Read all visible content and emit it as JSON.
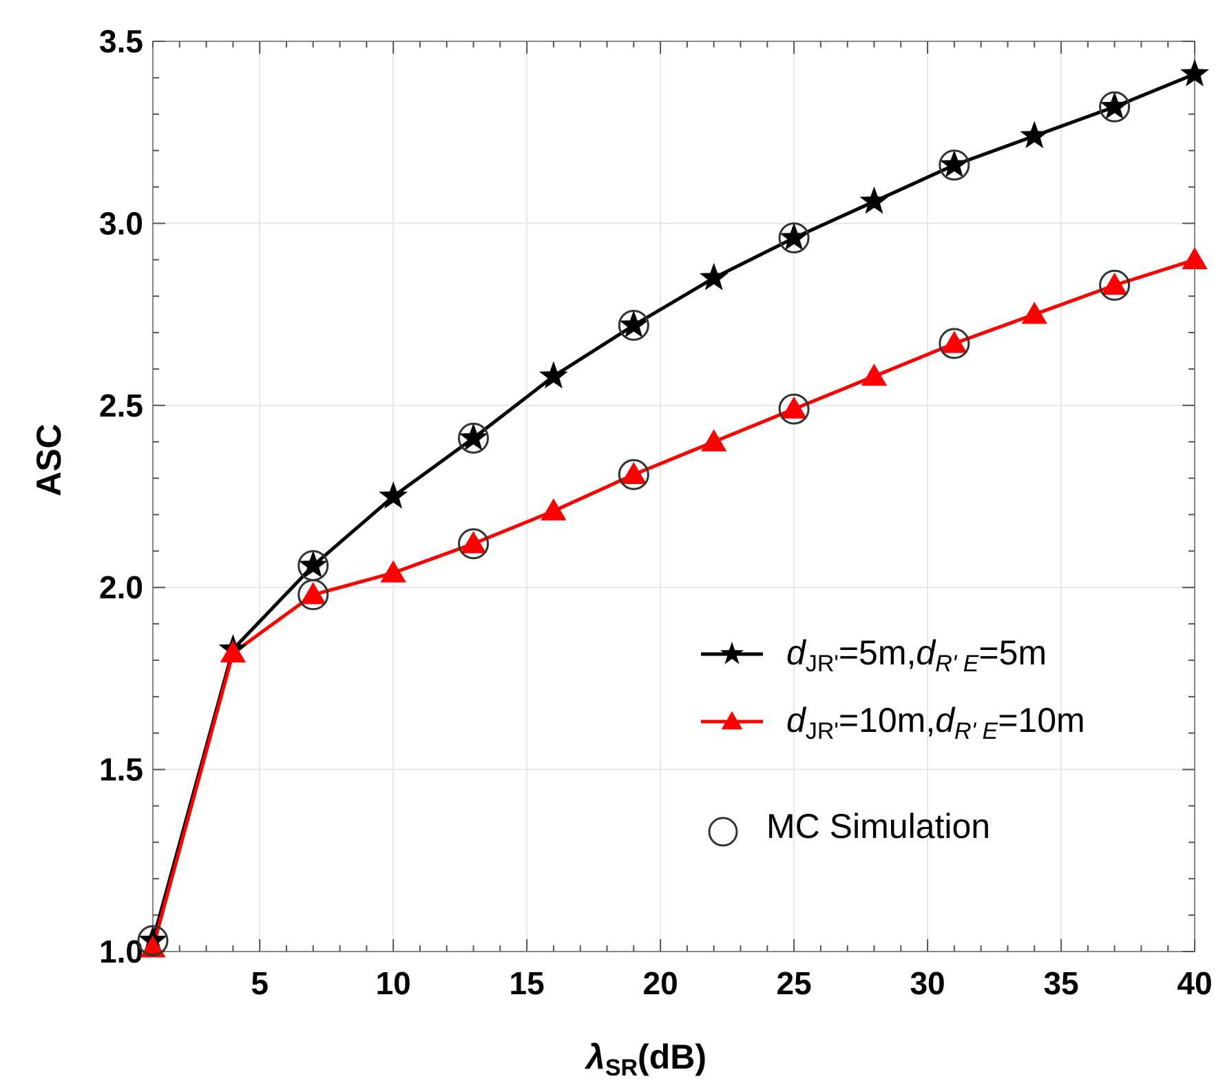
{
  "chart_data": {
    "type": "line",
    "title": "",
    "xlabel_main": "λ",
    "xlabel_sub": "SR",
    "xlabel_unit": "(dB)",
    "ylabel": "ASC",
    "xlim": [
      1,
      40
    ],
    "ylim": [
      1.0,
      3.5
    ],
    "grid": true,
    "xticks": [
      5,
      10,
      15,
      20,
      25,
      30,
      35,
      40
    ],
    "xtick_labels": [
      "5",
      "10",
      "15",
      "20",
      "25",
      "30",
      "35",
      "40"
    ],
    "yticks": [
      1.0,
      1.5,
      2.0,
      2.5,
      3.0,
      3.5
    ],
    "ytick_labels": [
      "1.0",
      "1.5",
      "2.0",
      "2.5",
      "3.0",
      "3.5"
    ],
    "series": [
      {
        "name": "dJR'=5m,dR'E=5m",
        "color": "#000000",
        "marker": "star",
        "x": [
          1,
          4,
          7,
          10,
          13,
          16,
          19,
          22,
          25,
          28,
          31,
          34,
          37,
          40
        ],
        "values": [
          1.03,
          1.83,
          2.06,
          2.25,
          2.41,
          2.58,
          2.72,
          2.85,
          2.96,
          3.06,
          3.16,
          3.24,
          3.32,
          3.41
        ]
      },
      {
        "name": "dJR'=10m,dR'E=10m",
        "color": "#ff0000",
        "marker": "triangle",
        "x": [
          1,
          4,
          7,
          10,
          13,
          16,
          19,
          22,
          25,
          28,
          31,
          34,
          37,
          40
        ],
        "values": [
          1.01,
          1.82,
          1.98,
          2.04,
          2.12,
          2.21,
          2.31,
          2.4,
          2.49,
          2.58,
          2.67,
          2.75,
          2.83,
          2.9
        ]
      }
    ],
    "mc_simulation": {
      "name": "MC Simulation",
      "marker": "circle",
      "points": [
        {
          "x": 1,
          "y": 1.03
        },
        {
          "x": 7,
          "y": 2.06
        },
        {
          "x": 13,
          "y": 2.41
        },
        {
          "x": 19,
          "y": 2.72
        },
        {
          "x": 25,
          "y": 2.96
        },
        {
          "x": 31,
          "y": 3.16
        },
        {
          "x": 37,
          "y": 3.32
        },
        {
          "x": 7,
          "y": 1.98
        },
        {
          "x": 13,
          "y": 2.12
        },
        {
          "x": 19,
          "y": 2.31
        },
        {
          "x": 25,
          "y": 2.49
        },
        {
          "x": 31,
          "y": 2.67
        },
        {
          "x": 37,
          "y": 2.83
        }
      ]
    },
    "legend": {
      "placement": "center-right",
      "entries": [
        {
          "d": "d",
          "sub1": "JR'",
          "eq1": "=5m,",
          "d2": "d",
          "sub2": "R' E",
          "eq2": "=5m"
        },
        {
          "d": "d",
          "sub1": "JR'",
          "eq1": "=10m,",
          "d2": "d",
          "sub2": "R' E",
          "eq2": "=10m"
        },
        {
          "label": "MC Simulation"
        }
      ]
    }
  }
}
